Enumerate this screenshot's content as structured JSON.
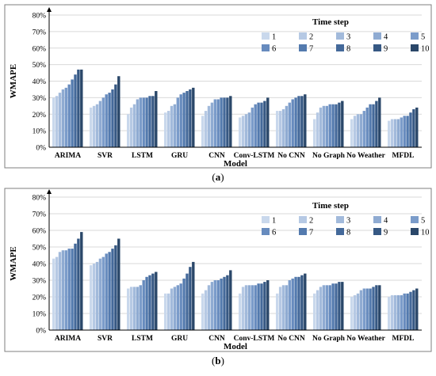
{
  "figure": {
    "panel_labels": [
      "(a)",
      "(b)"
    ]
  },
  "chart_data": [
    {
      "type": "bar",
      "panel": "(a)",
      "xlabel": "Model",
      "ylabel": "WMAPE",
      "ylim": [
        0,
        0.8
      ],
      "yticks": [
        "0%",
        "10%",
        "20%",
        "30%",
        "40%",
        "50%",
        "60%",
        "70%",
        "80%"
      ],
      "legend_title": "Time step",
      "legend_position": "top-right",
      "grid": "horizontal",
      "categories": [
        "ARIMA",
        "SVR",
        "LSTM",
        "GRU",
        "CNN",
        "Conv-LSTM",
        "No CNN",
        "No Graph",
        "No Weather",
        "MFDL"
      ],
      "series": [
        {
          "name": "1",
          "values": [
            0.3,
            0.24,
            0.2,
            0.21,
            0.19,
            0.18,
            0.22,
            0.17,
            0.17,
            0.16
          ]
        },
        {
          "name": "2",
          "values": [
            0.31,
            0.25,
            0.24,
            0.22,
            0.22,
            0.19,
            0.22,
            0.21,
            0.19,
            0.17
          ]
        },
        {
          "name": "3",
          "values": [
            0.33,
            0.26,
            0.26,
            0.25,
            0.25,
            0.2,
            0.23,
            0.24,
            0.2,
            0.17
          ]
        },
        {
          "name": "4",
          "values": [
            0.35,
            0.28,
            0.29,
            0.26,
            0.27,
            0.21,
            0.25,
            0.25,
            0.2,
            0.17
          ]
        },
        {
          "name": "5",
          "values": [
            0.36,
            0.3,
            0.3,
            0.3,
            0.29,
            0.24,
            0.27,
            0.25,
            0.22,
            0.18
          ]
        },
        {
          "name": "6",
          "values": [
            0.38,
            0.32,
            0.3,
            0.32,
            0.29,
            0.26,
            0.29,
            0.26,
            0.24,
            0.19
          ]
        },
        {
          "name": "7",
          "values": [
            0.41,
            0.33,
            0.3,
            0.33,
            0.3,
            0.27,
            0.3,
            0.26,
            0.26,
            0.19
          ]
        },
        {
          "name": "8",
          "values": [
            0.44,
            0.35,
            0.31,
            0.34,
            0.3,
            0.27,
            0.31,
            0.26,
            0.26,
            0.21
          ]
        },
        {
          "name": "9",
          "values": [
            0.47,
            0.38,
            0.31,
            0.35,
            0.3,
            0.28,
            0.31,
            0.27,
            0.28,
            0.23
          ]
        },
        {
          "name": "10",
          "values": [
            0.47,
            0.43,
            0.34,
            0.36,
            0.31,
            0.3,
            0.32,
            0.28,
            0.3,
            0.24
          ]
        }
      ]
    },
    {
      "type": "bar",
      "panel": "(b)",
      "xlabel": "Model",
      "ylabel": "WMAPE",
      "ylim": [
        0,
        0.8
      ],
      "yticks": [
        "0%",
        "10%",
        "20%",
        "30%",
        "40%",
        "50%",
        "60%",
        "70%",
        "80%"
      ],
      "legend_title": "Time step",
      "legend_position": "top-right",
      "grid": "horizontal",
      "categories": [
        "ARIMA",
        "SVR",
        "LSTM",
        "GRU",
        "CNN",
        "Conv-LSTM",
        "No CNN",
        "No Graph",
        "No Weather",
        "MFDL"
      ],
      "series": [
        {
          "name": "1",
          "values": [
            0.43,
            0.39,
            0.25,
            0.22,
            0.22,
            0.22,
            0.22,
            0.22,
            0.2,
            0.2
          ]
        },
        {
          "name": "2",
          "values": [
            0.44,
            0.4,
            0.26,
            0.22,
            0.24,
            0.26,
            0.26,
            0.24,
            0.21,
            0.21
          ]
        },
        {
          "name": "3",
          "values": [
            0.47,
            0.41,
            0.26,
            0.25,
            0.27,
            0.27,
            0.27,
            0.26,
            0.22,
            0.21
          ]
        },
        {
          "name": "4",
          "values": [
            0.48,
            0.43,
            0.26,
            0.26,
            0.29,
            0.27,
            0.27,
            0.27,
            0.24,
            0.21
          ]
        },
        {
          "name": "5",
          "values": [
            0.48,
            0.44,
            0.27,
            0.27,
            0.3,
            0.27,
            0.3,
            0.27,
            0.25,
            0.21
          ]
        },
        {
          "name": "6",
          "values": [
            0.49,
            0.46,
            0.3,
            0.28,
            0.3,
            0.27,
            0.31,
            0.27,
            0.25,
            0.22
          ]
        },
        {
          "name": "7",
          "values": [
            0.49,
            0.47,
            0.32,
            0.31,
            0.31,
            0.28,
            0.32,
            0.28,
            0.25,
            0.22
          ]
        },
        {
          "name": "8",
          "values": [
            0.52,
            0.49,
            0.33,
            0.34,
            0.32,
            0.28,
            0.32,
            0.28,
            0.26,
            0.23
          ]
        },
        {
          "name": "9",
          "values": [
            0.55,
            0.51,
            0.34,
            0.38,
            0.33,
            0.29,
            0.33,
            0.29,
            0.27,
            0.24
          ]
        },
        {
          "name": "10",
          "values": [
            0.59,
            0.55,
            0.35,
            0.41,
            0.36,
            0.3,
            0.34,
            0.29,
            0.27,
            0.25
          ]
        }
      ]
    }
  ]
}
